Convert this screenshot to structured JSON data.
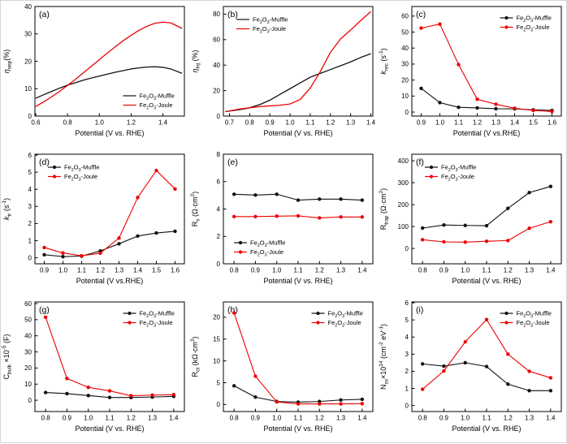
{
  "figure": {
    "background": "#ffffff",
    "axis_color": "#000000",
    "series_colors": {
      "muffle": "#111111",
      "joule": "#ee0000"
    },
    "legend_labels": {
      "muffle": "Fe_{2}O_{3}-Muffle",
      "joule": "Fe_{2}O_{3}-Joule"
    }
  },
  "chart_data": [
    {
      "tag": "(a)",
      "type": "line",
      "xlabel": "Potential (V vs. RHE)",
      "ylabel": "*η*_{sep}(%)",
      "xlim": [
        0.595,
        1.535
      ],
      "ylim": [
        0,
        40
      ],
      "xticks": [
        0.6,
        0.8,
        1.0,
        1.2,
        1.4
      ],
      "yticks": [
        0,
        10,
        20,
        30,
        40
      ],
      "legend_pos": "bottom-right",
      "markers": false,
      "series": [
        {
          "name": "Fe_{2}O_{3}-Muffle",
          "color": "#111111",
          "x": [
            0.6,
            0.65,
            0.7,
            0.75,
            0.8,
            0.85,
            0.9,
            0.95,
            1.0,
            1.05,
            1.1,
            1.15,
            1.2,
            1.25,
            1.3,
            1.35,
            1.4,
            1.45,
            1.52
          ],
          "y": [
            6.5,
            7.8,
            9.0,
            10.2,
            11.3,
            12.2,
            13.1,
            13.9,
            14.6,
            15.3,
            16.0,
            16.6,
            17.2,
            17.6,
            17.9,
            18.0,
            17.8,
            17.2,
            15.6
          ]
        },
        {
          "name": "Fe_{2}O_{3}-Joule",
          "color": "#ee0000",
          "x": [
            0.6,
            0.65,
            0.7,
            0.75,
            0.8,
            0.85,
            0.9,
            0.95,
            1.0,
            1.05,
            1.1,
            1.15,
            1.2,
            1.25,
            1.3,
            1.35,
            1.4,
            1.45,
            1.52
          ],
          "y": [
            3.5,
            5.2,
            7.0,
            9.0,
            11.2,
            13.4,
            15.8,
            18.2,
            20.6,
            23.0,
            25.3,
            27.5,
            29.5,
            31.3,
            32.8,
            33.9,
            34.3,
            34.0,
            32.0
          ]
        }
      ]
    },
    {
      "tag": "(b)",
      "type": "line",
      "xlabel": "Potential (V vs. RHE)",
      "ylabel": "*η*_{inj} (%)",
      "xlim": [
        0.67,
        1.41
      ],
      "ylim": [
        0,
        86
      ],
      "xticks": [
        0.7,
        0.8,
        0.9,
        1.0,
        1.1,
        1.2,
        1.3,
        1.4
      ],
      "yticks": [
        0,
        20,
        40,
        60,
        80
      ],
      "legend_pos": "top-left",
      "markers": false,
      "series": [
        {
          "name": "Fe_{2}O_{3}-Muffle",
          "color": "#111111",
          "x": [
            0.68,
            0.75,
            0.8,
            0.85,
            0.9,
            0.95,
            1.0,
            1.05,
            1.1,
            1.15,
            1.2,
            1.25,
            1.3,
            1.35,
            1.4
          ],
          "y": [
            3.5,
            5.0,
            6.5,
            9.0,
            12.5,
            17.0,
            21.5,
            26.0,
            30.5,
            33.5,
            36.5,
            39.5,
            42.5,
            46.0,
            49.0
          ]
        },
        {
          "name": "Fe_{2}O_{3}-Joule",
          "color": "#ee0000",
          "x": [
            0.68,
            0.75,
            0.8,
            0.85,
            0.9,
            0.95,
            1.0,
            1.05,
            1.1,
            1.15,
            1.2,
            1.25,
            1.3,
            1.35,
            1.4
          ],
          "y": [
            3.5,
            5.5,
            6.5,
            7.5,
            8.0,
            8.5,
            9.5,
            13.0,
            22.0,
            35.0,
            50.0,
            60.5,
            67.5,
            75.0,
            82.0
          ]
        }
      ]
    },
    {
      "tag": "(c)",
      "type": "scatter-line",
      "xlabel": "Potential (V vs.RHE)",
      "ylabel": "*k*_{rec} (s^{-1})",
      "xlim": [
        0.85,
        1.65
      ],
      "ylim": [
        -2.5,
        66
      ],
      "xticks": [
        0.9,
        1.0,
        1.1,
        1.2,
        1.3,
        1.4,
        1.5,
        1.6
      ],
      "yticks": [
        0,
        10,
        20,
        30,
        40,
        50,
        60
      ],
      "legend_pos": "top-right",
      "markers": true,
      "series": [
        {
          "name": "Fe_{2}O_{3}-Muffle",
          "color": "#111111",
          "x": [
            0.9,
            1.0,
            1.1,
            1.2,
            1.3,
            1.4,
            1.5,
            1.6
          ],
          "y": [
            14.8,
            5.9,
            3.0,
            2.6,
            2.1,
            2.0,
            1.4,
            1.0
          ]
        },
        {
          "name": "Fe_{2}O_{3}-Joule",
          "color": "#ee0000",
          "x": [
            0.9,
            1.0,
            1.1,
            1.2,
            1.3,
            1.4,
            1.5,
            1.6
          ],
          "y": [
            52.5,
            55.0,
            29.7,
            8.0,
            4.9,
            2.4,
            1.0,
            0.4
          ]
        }
      ]
    },
    {
      "tag": "(d)",
      "type": "scatter-line",
      "xlabel": "Potential (V vs.RHE)",
      "ylabel": "*k*_{tr} (s^{-1})",
      "xlim": [
        0.85,
        1.65
      ],
      "ylim": [
        -0.35,
        6.05
      ],
      "xticks": [
        0.9,
        1.0,
        1.1,
        1.2,
        1.3,
        1.4,
        1.5,
        1.6
      ],
      "yticks": [
        0,
        1,
        2,
        3,
        4,
        5,
        6
      ],
      "legend_pos": "top-left",
      "markers": true,
      "series": [
        {
          "name": "Fe_{2}O_{3}-Muffle",
          "color": "#111111",
          "x": [
            0.9,
            1.0,
            1.1,
            1.2,
            1.3,
            1.4,
            1.5,
            1.6
          ],
          "y": [
            0.18,
            0.07,
            0.1,
            0.4,
            0.82,
            1.27,
            1.45,
            1.55
          ]
        },
        {
          "name": "Fe_{2}O_{3}-Joule",
          "color": "#ee0000",
          "x": [
            0.9,
            1.0,
            1.1,
            1.2,
            1.3,
            1.4,
            1.5,
            1.6
          ],
          "y": [
            0.6,
            0.28,
            0.12,
            0.27,
            1.15,
            3.52,
            5.1,
            4.02
          ]
        }
      ]
    },
    {
      "tag": "(e)",
      "type": "scatter-line",
      "xlabel": "Potential (V vs. RHE)",
      "ylabel": "R_{s} (Ω·cm^{2})",
      "xlim": [
        0.75,
        1.45
      ],
      "ylim": [
        0,
        8
      ],
      "xticks": [
        0.8,
        0.9,
        1.0,
        1.1,
        1.2,
        1.3,
        1.4
      ],
      "yticks": [
        0,
        2,
        4,
        6,
        8
      ],
      "legend_pos": "bottom-left",
      "markers": true,
      "series": [
        {
          "name": "Fe_{2}O_{3}-Muffle",
          "color": "#111111",
          "x": [
            0.8,
            0.9,
            1.0,
            1.1,
            1.2,
            1.3,
            1.4
          ],
          "y": [
            5.08,
            5.02,
            5.08,
            4.65,
            4.72,
            4.72,
            4.65
          ]
        },
        {
          "name": "Fe_{2}O_{3}-Joule",
          "color": "#ee0000",
          "x": [
            0.8,
            0.9,
            1.0,
            1.1,
            1.2,
            1.3,
            1.4
          ],
          "y": [
            3.45,
            3.45,
            3.48,
            3.5,
            3.35,
            3.42,
            3.42
          ]
        }
      ]
    },
    {
      "tag": "(f)",
      "type": "scatter-line",
      "xlabel": "Potential (V vs. RHE)",
      "ylabel": "R_{trap} (Ω·cm^{2})",
      "xlim": [
        0.75,
        1.45
      ],
      "ylim": [
        -70,
        430
      ],
      "xticks": [
        0.8,
        0.9,
        1.0,
        1.1,
        1.2,
        1.3,
        1.4
      ],
      "yticks": [
        0,
        100,
        200,
        300,
        400
      ],
      "legend_pos": "top-left",
      "markers": true,
      "series": [
        {
          "name": "Fe_{2}O_{3}-Muffle",
          "color": "#111111",
          "x": [
            0.8,
            0.9,
            1.0,
            1.1,
            1.2,
            1.3,
            1.4
          ],
          "y": [
            93,
            107,
            105,
            104,
            183,
            255,
            283
          ]
        },
        {
          "name": "Fe_{2}O_{3}-Joule",
          "color": "#ee0000",
          "x": [
            0.8,
            0.9,
            1.0,
            1.1,
            1.2,
            1.3,
            1.4
          ],
          "y": [
            40,
            30,
            29,
            33,
            36,
            92,
            122
          ]
        }
      ]
    },
    {
      "tag": "(g)",
      "type": "scatter-line",
      "xlabel": "Potential (V vs. RHE)",
      "ylabel": "C_{bulk} ×10^{-5} (F)",
      "xlim": [
        0.75,
        1.45
      ],
      "ylim": [
        -7,
        61
      ],
      "xticks": [
        0.8,
        0.9,
        1.0,
        1.1,
        1.2,
        1.3,
        1.4
      ],
      "yticks": [
        0,
        10,
        20,
        30,
        40,
        50,
        60
      ],
      "legend_pos": "top-right",
      "markers": true,
      "series": [
        {
          "name": "Fe_{2}O_{3}-Muffle",
          "color": "#111111",
          "x": [
            0.8,
            0.9,
            1.0,
            1.1,
            1.2,
            1.3,
            1.4
          ],
          "y": [
            4.8,
            4.1,
            2.9,
            1.7,
            1.7,
            2.0,
            2.4
          ]
        },
        {
          "name": "Fe_{2}O_{3}-Joule",
          "color": "#ee0000",
          "x": [
            0.8,
            0.9,
            1.0,
            1.1,
            1.2,
            1.3,
            1.4
          ],
          "y": [
            51.5,
            13.5,
            8.0,
            5.8,
            2.8,
            3.2,
            3.5
          ]
        }
      ]
    },
    {
      "tag": "(h)",
      "type": "scatter-line",
      "xlabel": "Potential (V vs. RHE)",
      "ylabel": "R_{ct} (kΩ·cm^{2})",
      "xlim": [
        0.75,
        1.45
      ],
      "ylim": [
        -1.6,
        23.5
      ],
      "xticks": [
        0.8,
        0.9,
        1.0,
        1.1,
        1.2,
        1.3,
        1.4
      ],
      "yticks": [
        0,
        5,
        10,
        15,
        20
      ],
      "legend_pos": "top-right",
      "markers": true,
      "series": [
        {
          "name": "Fe_{2}O_{3}-Muffle",
          "color": "#111111",
          "x": [
            0.8,
            0.9,
            1.0,
            1.1,
            1.2,
            1.3,
            1.4
          ],
          "y": [
            4.3,
            1.7,
            0.7,
            0.55,
            0.7,
            1.05,
            1.2
          ]
        },
        {
          "name": "Fe_{2}O_{3}-Joule",
          "color": "#ee0000",
          "x": [
            0.8,
            0.9,
            1.0,
            1.1,
            1.2,
            1.3,
            1.4
          ],
          "y": [
            21.0,
            6.5,
            0.6,
            0.15,
            0.15,
            0.15,
            0.2
          ]
        }
      ]
    },
    {
      "tag": "(i)",
      "type": "scatter-line",
      "xlabel": "Potential (V vs. RHE)",
      "ylabel": "N_{ss}×10^{14} (cm^{-2} eV^{-1})",
      "xlim": [
        0.75,
        1.45
      ],
      "ylim": [
        -0.35,
        6.05
      ],
      "xticks": [
        0.8,
        0.9,
        1.0,
        1.1,
        1.2,
        1.3,
        1.4
      ],
      "yticks": [
        0,
        1,
        2,
        3,
        4,
        5,
        6
      ],
      "legend_pos": "top-right",
      "markers": true,
      "series": [
        {
          "name": "Fe_{2}O_{3}-Muffle",
          "color": "#111111",
          "x": [
            0.8,
            0.9,
            1.0,
            1.1,
            1.2,
            1.3,
            1.4
          ],
          "y": [
            2.43,
            2.3,
            2.5,
            2.28,
            1.25,
            0.87,
            0.87
          ]
        },
        {
          "name": "Fe_{2}O_{3}-Joule",
          "color": "#ee0000",
          "x": [
            0.8,
            0.9,
            1.0,
            1.1,
            1.2,
            1.3,
            1.4
          ],
          "y": [
            0.95,
            2.02,
            3.72,
            5.02,
            3.0,
            2.0,
            1.62
          ]
        }
      ]
    }
  ]
}
